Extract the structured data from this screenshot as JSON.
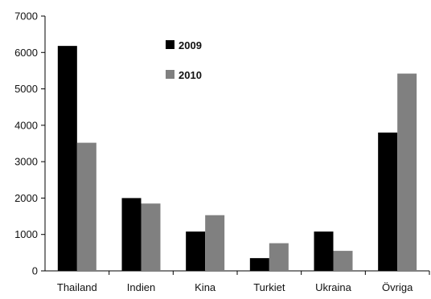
{
  "chart_data": {
    "type": "bar",
    "categories": [
      "Thailand",
      "Indien",
      "Kina",
      "Turkiet",
      "Ukraina",
      "Övriga"
    ],
    "series": [
      {
        "name": "2009",
        "color": "#000000",
        "values": [
          6180,
          2000,
          1080,
          350,
          1080,
          3800
        ]
      },
      {
        "name": "2010",
        "color": "#808080",
        "values": [
          3520,
          1850,
          1530,
          760,
          550,
          5420
        ]
      }
    ],
    "y_ticks": [
      "0",
      "1000",
      "2000",
      "3000",
      "4000",
      "5000",
      "6000",
      "7000"
    ],
    "ylim": [
      0,
      7000
    ],
    "grid": false,
    "legend_position": "top-center"
  }
}
